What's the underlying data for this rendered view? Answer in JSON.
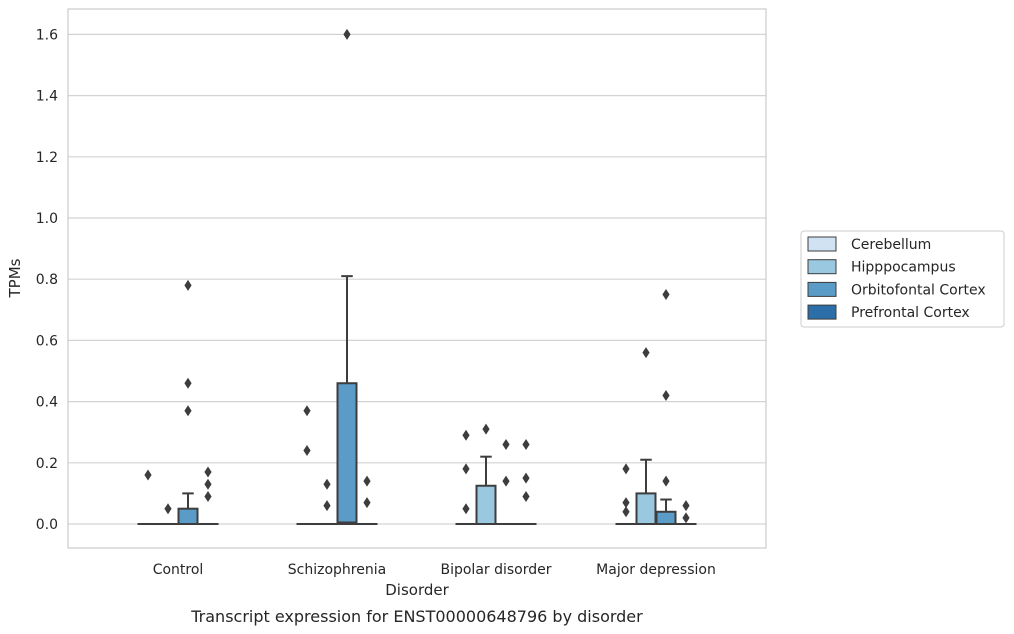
{
  "chart_data": {
    "type": "box",
    "caption": "Transcript expression for ENST00000648796 by disorder",
    "xlabel": "Disorder",
    "ylabel": "TPMs",
    "ylim": [
      -0.08,
      1.68
    ],
    "yticks": [
      "0.0",
      "0.2",
      "0.4",
      "0.6",
      "0.8",
      "1.0",
      "1.2",
      "1.4",
      "1.6"
    ],
    "grid": true,
    "legend_position": "right",
    "categories": [
      "Control",
      "Schizophrenia",
      "Bipolar disorder",
      "Major depression"
    ],
    "series": [
      {
        "name": "Cerebellum",
        "color": "#d1e2f2",
        "boxes": [
          {
            "category": "Control",
            "q1": 0,
            "median": 0,
            "q3": 0,
            "whisker_low": 0,
            "whisker_high": 0,
            "outliers": [
              0.16
            ]
          },
          {
            "category": "Schizophrenia",
            "q1": 0,
            "median": 0,
            "q3": 0,
            "whisker_low": 0,
            "whisker_high": 0,
            "outliers": [
              0.37,
              0.24
            ]
          },
          {
            "category": "Bipolar disorder",
            "q1": 0,
            "median": 0,
            "q3": 0,
            "whisker_low": 0,
            "whisker_high": 0,
            "outliers": [
              0.29,
              0.18,
              0.05
            ]
          },
          {
            "category": "Major depression",
            "q1": 0,
            "median": 0,
            "q3": 0,
            "whisker_low": 0,
            "whisker_high": 0,
            "outliers": [
              0.18,
              0.07,
              0.04
            ]
          }
        ]
      },
      {
        "name": "Hipppocampus",
        "color": "#9ac8e0",
        "boxes": [
          {
            "category": "Control",
            "q1": 0,
            "median": 0,
            "q3": 0,
            "whisker_low": 0,
            "whisker_high": 0,
            "outliers": [
              0.05
            ]
          },
          {
            "category": "Schizophrenia",
            "q1": 0,
            "median": 0,
            "q3": 0,
            "whisker_low": 0,
            "whisker_high": 0,
            "outliers": [
              0.13,
              0.06
            ]
          },
          {
            "category": "Bipolar disorder",
            "q1": 0,
            "median": 0,
            "q3": 0.125,
            "whisker_low": 0,
            "whisker_high": 0.22,
            "outliers": [
              0.31
            ]
          },
          {
            "category": "Major depression",
            "q1": 0,
            "median": 0,
            "q3": 0.1,
            "whisker_low": 0,
            "whisker_high": 0.21,
            "outliers": [
              0.56
            ]
          }
        ]
      },
      {
        "name": "Orbitofontal Cortex",
        "color": "#5a9bc8",
        "boxes": [
          {
            "category": "Control",
            "q1": 0,
            "median": 0,
            "q3": 0.05,
            "whisker_low": 0,
            "whisker_high": 0.1,
            "outliers": [
              0.78,
              0.46,
              0.37
            ]
          },
          {
            "category": "Schizophrenia",
            "q1": 0,
            "median": 0.005,
            "q3": 0.46,
            "whisker_low": 0,
            "whisker_high": 0.81,
            "outliers": [
              1.6
            ]
          },
          {
            "category": "Bipolar disorder",
            "q1": 0,
            "median": 0,
            "q3": 0,
            "whisker_low": 0,
            "whisker_high": 0,
            "outliers": [
              0.26,
              0.14
            ]
          },
          {
            "category": "Major depression",
            "q1": 0,
            "median": 0,
            "q3": 0.04,
            "whisker_low": 0,
            "whisker_high": 0.08,
            "outliers": [
              0.75,
              0.42,
              0.14
            ]
          }
        ]
      },
      {
        "name": "Prefrontal Cortex",
        "color": "#2b6ea8",
        "boxes": [
          {
            "category": "Control",
            "q1": 0,
            "median": 0,
            "q3": 0,
            "whisker_low": 0,
            "whisker_high": 0,
            "outliers": [
              0.17,
              0.13,
              0.09
            ]
          },
          {
            "category": "Schizophrenia",
            "q1": 0,
            "median": 0,
            "q3": 0,
            "whisker_low": 0,
            "whisker_high": 0,
            "outliers": [
              0.14,
              0.07
            ]
          },
          {
            "category": "Bipolar disorder",
            "q1": 0,
            "median": 0,
            "q3": 0,
            "whisker_low": 0,
            "whisker_high": 0,
            "outliers": [
              0.26,
              0.15,
              0.09
            ]
          },
          {
            "category": "Major depression",
            "q1": 0,
            "median": 0,
            "q3": 0,
            "whisker_low": 0,
            "whisker_high": 0,
            "outliers": [
              0.06,
              0.02
            ]
          }
        ]
      }
    ]
  }
}
